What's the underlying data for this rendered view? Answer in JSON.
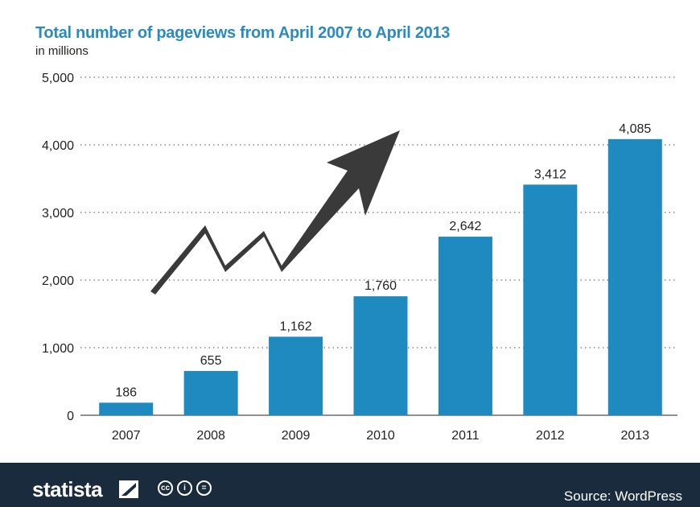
{
  "chart_data": {
    "type": "bar",
    "title": "Total number of pageviews from April 2007 to April 2013",
    "subtitle": "in millions",
    "categories": [
      "2007",
      "2008",
      "2009",
      "2010",
      "2011",
      "2012",
      "2013"
    ],
    "values": [
      186,
      655,
      1162,
      1760,
      2642,
      3412,
      4085
    ],
    "data_labels": [
      "186",
      "655",
      "1,162",
      "1,760",
      "2,642",
      "3,412",
      "4,085"
    ],
    "yticks": [
      0,
      1000,
      2000,
      3000,
      4000,
      5000
    ],
    "ytick_labels": [
      "0",
      "1,000",
      "2,000",
      "3,000",
      "4,000",
      "5,000"
    ],
    "ylim": [
      0,
      5000
    ],
    "xlabel": "",
    "ylabel": "",
    "grid": true,
    "grid_style": "dotted",
    "legend": "none",
    "bar_color": "#1f8ac0",
    "decoration": "upward-zigzag-arrow-icon"
  },
  "footer": {
    "brand": "statista",
    "license_icons": [
      "cc-icon",
      "by-icon",
      "nd-icon"
    ],
    "source": "Source: WordPress",
    "background": "#1a2b3d"
  }
}
